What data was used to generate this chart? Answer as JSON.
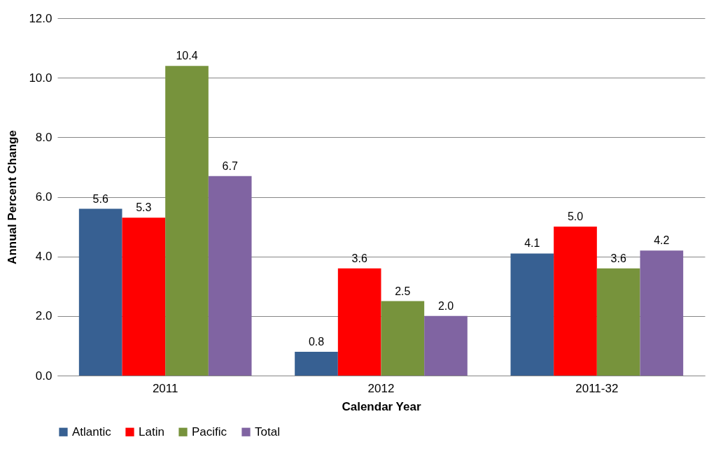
{
  "chart_data": {
    "type": "bar",
    "xlabel": "Calendar Year",
    "ylabel": "Annual Percent Change",
    "categories": [
      "2011",
      "2012",
      "2011-32"
    ],
    "series": [
      {
        "name": "Atlantic",
        "color": "#376092",
        "values": [
          5.6,
          0.8,
          4.1
        ],
        "value_labels": [
          "5.6",
          "0.8",
          "4.1"
        ]
      },
      {
        "name": "Latin",
        "color": "#ff0000",
        "values": [
          5.3,
          3.6,
          5.0
        ],
        "value_labels": [
          "5.3",
          "3.6",
          "5.0"
        ]
      },
      {
        "name": "Pacific",
        "color": "#77933c",
        "values": [
          10.4,
          2.5,
          3.6
        ],
        "value_labels": [
          "10.4",
          "2.5",
          "3.6"
        ]
      },
      {
        "name": "Total",
        "color": "#8064a2",
        "values": [
          6.7,
          2.0,
          4.2
        ],
        "value_labels": [
          "6.7",
          "2.0",
          "4.2"
        ]
      }
    ],
    "ylim": [
      0,
      12
    ],
    "yticks": [
      {
        "value": 0,
        "label": "0.0"
      },
      {
        "value": 2,
        "label": "2.0"
      },
      {
        "value": 4,
        "label": "4.0"
      },
      {
        "value": 6,
        "label": "6.0"
      },
      {
        "value": 8,
        "label": "8.0"
      },
      {
        "value": 10,
        "label": "10.0"
      },
      {
        "value": 12,
        "label": "12.0"
      }
    ],
    "grid": "y",
    "legend": "bottom"
  }
}
